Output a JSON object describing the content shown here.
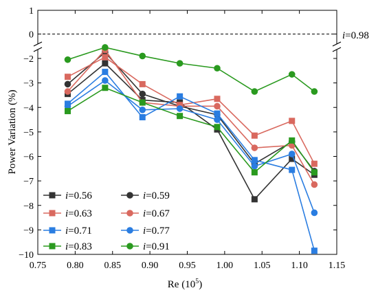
{
  "chart_data": {
    "type": "line",
    "xlabel": "Re (10",
    "xlabel_sup": "5",
    "xlabel_close": ")",
    "ylabel": "Power Variation (%)",
    "xlim": [
      0.75,
      1.15
    ],
    "ylim_upper": [
      -0.5,
      1
    ],
    "ylim_lower": [
      -10,
      -1.6
    ],
    "broken_y_axis": true,
    "x_ticks": [
      "0.75",
      "0.80",
      "0.85",
      "0.90",
      "0.95",
      "1.00",
      "1.05",
      "1.10",
      "1.15"
    ],
    "y_ticks": [
      "1",
      "0",
      "−2",
      "−3",
      "−4",
      "−5",
      "−6",
      "−7",
      "−8",
      "−9",
      "−10"
    ],
    "grid": false,
    "legend_placement": "bottom-left",
    "reference_line": {
      "y": 0,
      "style": "dashed",
      "label_prefix": "i",
      "label_value": "=0.98"
    },
    "x": [
      0.79,
      0.84,
      0.89,
      0.94,
      0.99,
      1.04,
      1.09,
      1.12
    ],
    "series": [
      {
        "name_prefix": "i",
        "name_value": "=0.56",
        "color": "#333333",
        "marker": "square",
        "values": [
          -3.45,
          -2.2,
          -3.7,
          -3.8,
          -4.9,
          -7.75,
          -6.1,
          -6.75
        ]
      },
      {
        "name_prefix": "i",
        "name_value": "=0.59",
        "color": "#333333",
        "marker": "circle",
        "values": [
          -3.05,
          -1.75,
          -3.45,
          -3.95,
          -4.3,
          -6.3,
          -5.4,
          -6.6
        ]
      },
      {
        "name_prefix": "i",
        "name_value": "=0.63",
        "color": "#d9695f",
        "marker": "square",
        "values": [
          -2.75,
          -1.95,
          -3.05,
          -3.9,
          -3.65,
          -5.15,
          -4.55,
          -6.3
        ]
      },
      {
        "name_prefix": "i",
        "name_value": "=0.67",
        "color": "#d9695f",
        "marker": "circle",
        "values": [
          -3.35,
          -1.65,
          -3.8,
          -3.95,
          -3.95,
          -5.65,
          -5.55,
          -7.15
        ]
      },
      {
        "name_prefix": "i",
        "name_value": "=0.71",
        "color": "#2a7de1",
        "marker": "square",
        "values": [
          -3.85,
          -2.55,
          -4.4,
          -3.55,
          -4.25,
          -6.15,
          -6.55,
          -9.85
        ]
      },
      {
        "name_prefix": "i",
        "name_value": "=0.77",
        "color": "#2a7de1",
        "marker": "circle",
        "values": [
          -3.95,
          -2.9,
          -4.1,
          -4.05,
          -4.5,
          -6.4,
          -5.9,
          -8.3
        ]
      },
      {
        "name_prefix": "i",
        "name_value": "=0.83",
        "color": "#2a9a1f",
        "marker": "square",
        "values": [
          -4.15,
          -3.2,
          -3.8,
          -4.35,
          -4.8,
          -6.65,
          -5.35,
          -6.65
        ]
      },
      {
        "name_prefix": "i",
        "name_value": "=0.91",
        "color": "#2a9a1f",
        "marker": "circle",
        "values": [
          -2.05,
          -1.55,
          -1.9,
          -2.2,
          -2.4,
          -3.35,
          -2.65,
          -3.35
        ]
      }
    ]
  }
}
